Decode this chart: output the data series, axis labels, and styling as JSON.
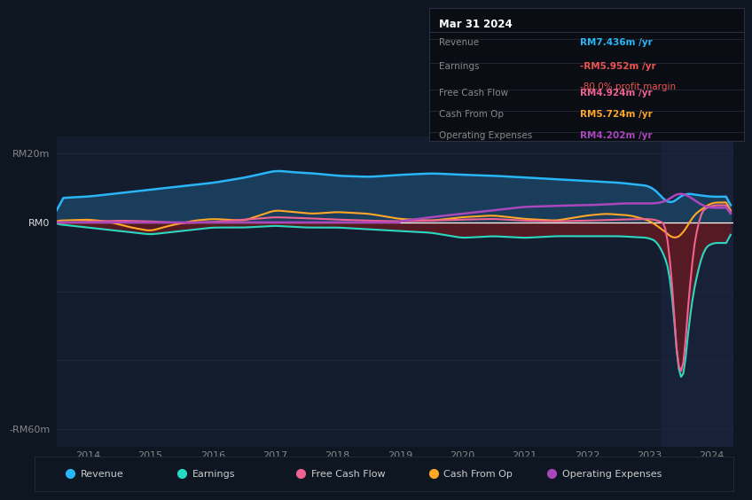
{
  "background_color": "#0e1621",
  "plot_bg_color": "#0e1621",
  "chart_bg_color": "#131d2e",
  "y_label_top": "RM20m",
  "y_label_bottom": "-RM60m",
  "y_label_zero": "RM0",
  "x_ticks": [
    2014,
    2015,
    2016,
    2017,
    2018,
    2019,
    2020,
    2021,
    2022,
    2023,
    2024
  ],
  "ylim": [
    -65,
    25
  ],
  "highlight_x_start": 2023.2,
  "colors": {
    "revenue": "#29b6f6",
    "earnings": "#26d9c2",
    "free_cash_flow": "#f06292",
    "cash_from_op": "#ffa726",
    "operating_expenses": "#ab47bc",
    "revenue_fill": "#1a3d5c",
    "earnings_fill_neg": "#5c1a22",
    "zero_line": "#ffffff",
    "highlight_bg": "#1a2540",
    "grid_line": "#1e2d45"
  },
  "info_box": {
    "date": "Mar 31 2024",
    "revenue_val": "RM7.436m",
    "earnings_val": "-RM5.952m",
    "profit_margin": "-80.0%",
    "fcf_val": "RM4.924m",
    "cash_from_op_val": "RM5.724m",
    "op_exp_val": "RM4.202m"
  },
  "legend": [
    {
      "label": "Revenue",
      "color": "#29b6f6"
    },
    {
      "label": "Earnings",
      "color": "#26d9c2"
    },
    {
      "label": "Free Cash Flow",
      "color": "#f06292"
    },
    {
      "label": "Cash From Op",
      "color": "#ffa726"
    },
    {
      "label": "Operating Expenses",
      "color": "#ab47bc"
    }
  ]
}
